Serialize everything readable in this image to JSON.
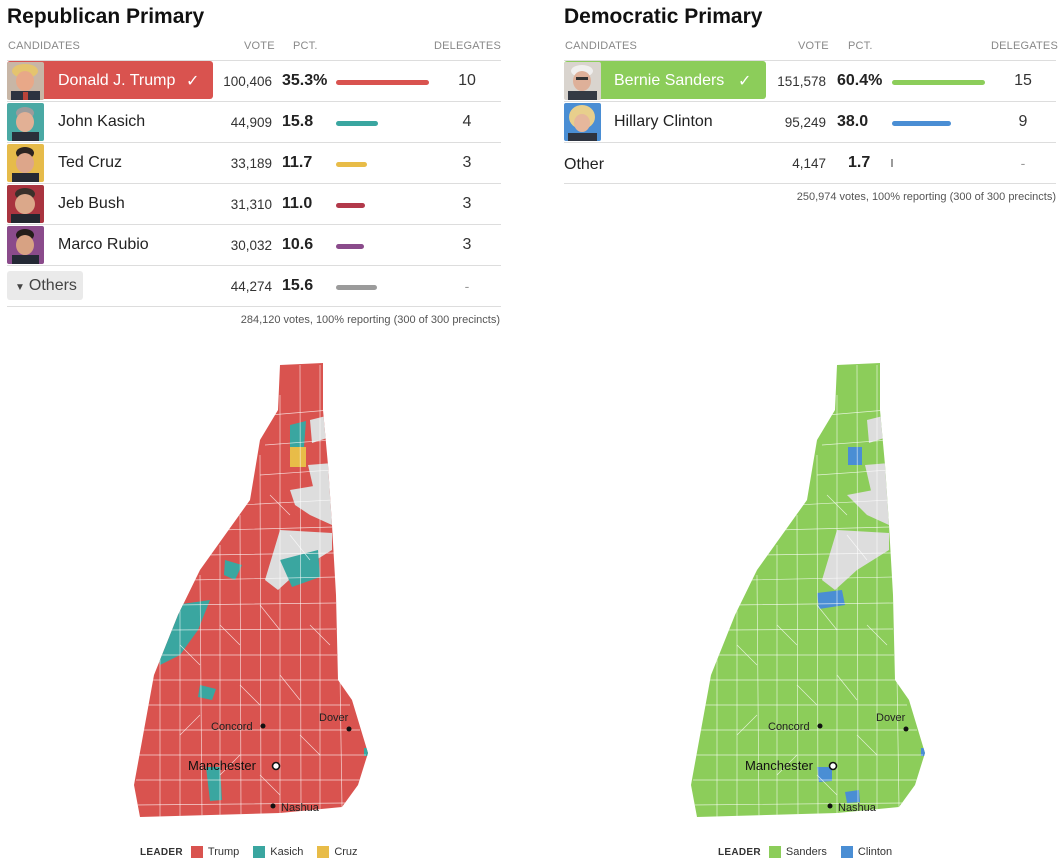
{
  "colors": {
    "trump": "#d9534f",
    "kasich": "#3aa6a0",
    "cruz": "#e8bc48",
    "bush": "#b2394a",
    "rubio": "#8a4b8b",
    "other_gray": "#9b9b9b",
    "sanders": "#8ccd5a",
    "clinton": "#4a8ed4",
    "no_result": "#dddddd"
  },
  "republican": {
    "title": "Republican Primary",
    "headers": {
      "candidates": "CANDIDATES",
      "vote": "VOTE",
      "pct": "PCT.",
      "delegates": "DELEGATES"
    },
    "candidates": [
      {
        "name": "Donald J. Trump",
        "vote": "100,406",
        "pct": "35.3%",
        "pct_value": 35.3,
        "delegates": "10",
        "winner": true,
        "color": "#d9534f"
      },
      {
        "name": "John Kasich",
        "vote": "44,909",
        "pct": "15.8",
        "pct_value": 15.8,
        "delegates": "4",
        "winner": false,
        "color": "#3aa6a0"
      },
      {
        "name": "Ted Cruz",
        "vote": "33,189",
        "pct": "11.7",
        "pct_value": 11.7,
        "delegates": "3",
        "winner": false,
        "color": "#e8bc48"
      },
      {
        "name": "Jeb Bush",
        "vote": "31,310",
        "pct": "11.0",
        "pct_value": 11.0,
        "delegates": "3",
        "winner": false,
        "color": "#b2394a"
      },
      {
        "name": "Marco Rubio",
        "vote": "30,032",
        "pct": "10.6",
        "pct_value": 10.6,
        "delegates": "3",
        "winner": false,
        "color": "#8a4b8b"
      }
    ],
    "others": {
      "label": "Others",
      "vote": "44,274",
      "pct": "15.6",
      "pct_value": 15.6,
      "delegates": "-"
    },
    "footer": "284,120 votes, 100% reporting (300 of 300 precincts)",
    "legend": {
      "title": "LEADER",
      "items": [
        "Trump",
        "Kasich",
        "Cruz"
      ]
    }
  },
  "democratic": {
    "title": "Democratic Primary",
    "headers": {
      "candidates": "CANDIDATES",
      "vote": "VOTE",
      "pct": "PCT.",
      "delegates": "DELEGATES"
    },
    "candidates": [
      {
        "name": "Bernie Sanders",
        "vote": "151,578",
        "pct": "60.4%",
        "pct_value": 60.4,
        "delegates": "15",
        "winner": true,
        "color": "#8ccd5a"
      },
      {
        "name": "Hillary Clinton",
        "vote": "95,249",
        "pct": "38.0",
        "pct_value": 38.0,
        "delegates": "9",
        "winner": false,
        "color": "#4a8ed4"
      }
    ],
    "others": {
      "label": "Other",
      "vote": "4,147",
      "pct": "1.7",
      "pct_value": 1.7,
      "delegates": "-"
    },
    "footer": "250,974 votes, 100% reporting (300 of 300 precincts)",
    "legend": {
      "title": "LEADER",
      "items": [
        "Sanders",
        "Clinton"
      ]
    }
  },
  "map_labels": {
    "concord": "Concord",
    "dover": "Dover",
    "manchester": "Manchester",
    "nashua": "Nashua"
  }
}
